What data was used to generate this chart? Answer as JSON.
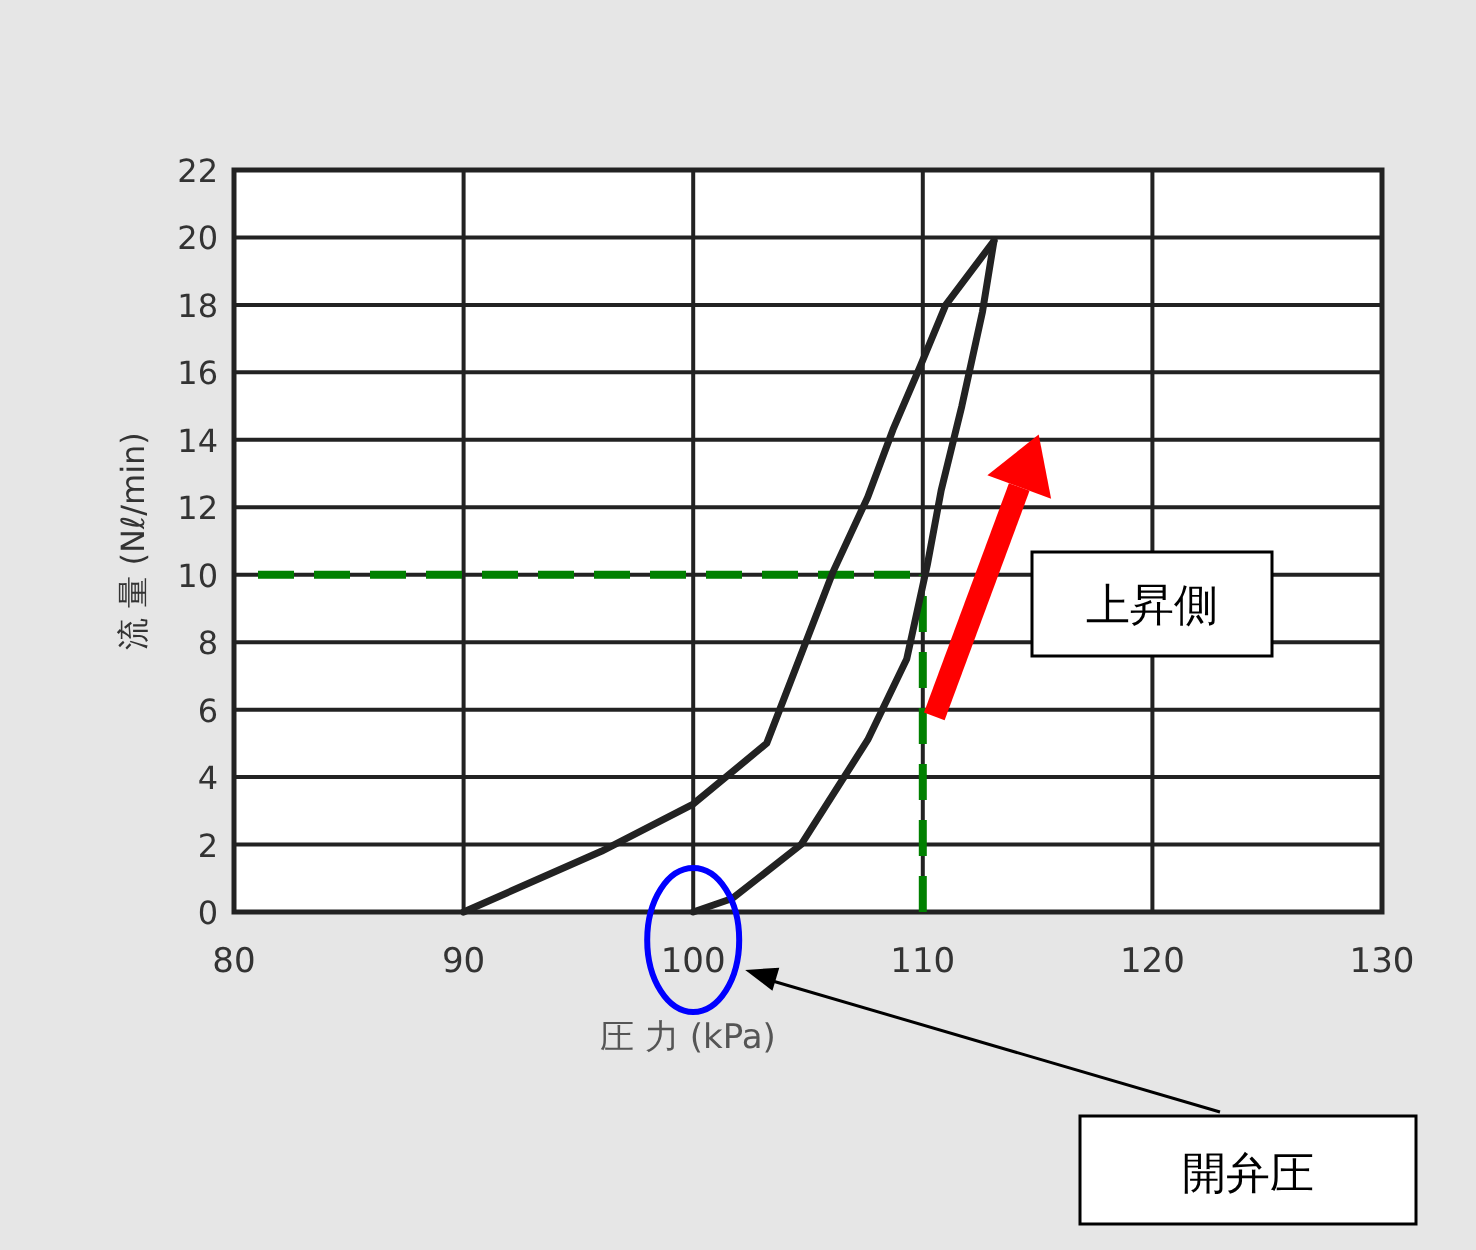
{
  "chart_data": {
    "type": "line",
    "xlabel": "圧 力 (kPa)",
    "ylabel": "流 量 (Nℓ/min)",
    "series": [
      {
        "color": "#222222",
        "x": [
          90,
          96,
          100,
          103.2,
          106.1,
          107.6,
          108.7,
          109.9,
          111.0,
          113.1
        ],
        "values": [
          0,
          1.8,
          3.2,
          5,
          10.1,
          12.3,
          14.3,
          16.2,
          18,
          19.9
        ]
      },
      {
        "color": "#222222",
        "x": [
          100,
          101.7,
          104.7,
          107.6,
          109.3,
          110.2,
          110.8,
          111.7,
          112.6,
          113.1
        ],
        "values": [
          0,
          0.4,
          2,
          5.1,
          7.5,
          10.3,
          12.5,
          15,
          17.8,
          19.9
        ]
      }
    ],
    "xlim": [
      80,
      130
    ],
    "xticks": [
      80,
      90,
      100,
      110,
      120,
      130
    ],
    "ylim": [
      0,
      22
    ],
    "yticks": [
      0,
      2,
      4,
      6,
      8,
      10,
      12,
      14,
      16,
      18,
      20,
      22
    ],
    "grid": true,
    "ref_lines": [
      {
        "axis": "y",
        "value": 10,
        "color": "#008000",
        "line_style": "dashed"
      },
      {
        "axis": "x",
        "value": 110,
        "color": "#008000",
        "line_style": "dashed"
      }
    ],
    "annotations": [
      "上昇側",
      "開弁圧"
    ]
  }
}
